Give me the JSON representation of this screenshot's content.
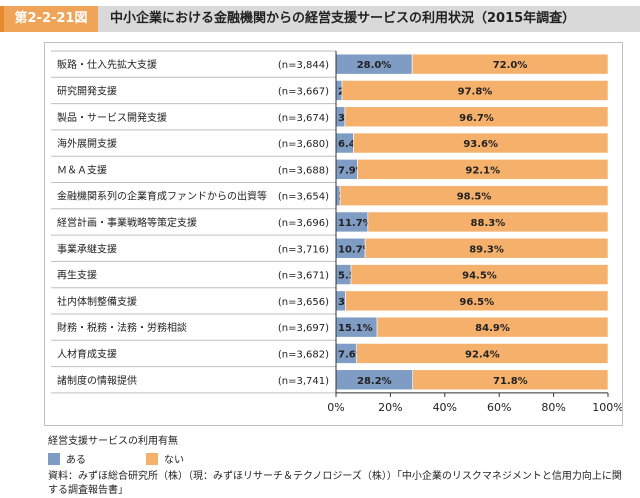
{
  "figure": {
    "label": "第2-2-21図",
    "title": "中小企業における金融機関からの経営支援サービスの利用状況（2015年調査）"
  },
  "chart_data": {
    "type": "bar",
    "orientation": "horizontal",
    "stacked": true,
    "percent_stacked": true,
    "categories": [
      "販路・仕入先拡大支援",
      "研究開発支援",
      "製品・サービス開発支援",
      "海外展開支援",
      "Ｍ＆Ａ支援",
      "金融機関系列の企業育成ファンドからの出資等",
      "経営計画・事業戦略等策定支援",
      "事業承継支援",
      "再生支援",
      "社内体制整備支援",
      "財務・税務・法務・労務相談",
      "人材育成支援",
      "諸制度の情報提供"
    ],
    "n_labels": [
      "(n=3,844)",
      "(n=3,667)",
      "(n=3,674)",
      "(n=3,680)",
      "(n=3,688)",
      "(n=3,654)",
      "(n=3,696)",
      "(n=3,716)",
      "(n=3,671)",
      "(n=3,656)",
      "(n=3,697)",
      "(n=3,682)",
      "(n=3,741)"
    ],
    "series": [
      {
        "name": "ある",
        "color": "#7f9cc4",
        "values": [
          28.0,
          2.2,
          3.3,
          6.4,
          7.9,
          1.5,
          11.7,
          10.7,
          5.5,
          3.5,
          15.1,
          7.6,
          28.2
        ]
      },
      {
        "name": "ない",
        "color": "#f5b06c",
        "values": [
          72.0,
          97.8,
          96.7,
          93.6,
          92.1,
          98.5,
          88.3,
          89.3,
          94.5,
          96.5,
          84.9,
          92.4,
          71.8
        ]
      }
    ],
    "xlim": [
      0,
      100
    ],
    "x_ticks": [
      "0%",
      "20%",
      "40%",
      "60%",
      "80%",
      "100%"
    ],
    "legend_title": "経営支援サービスの利用有無",
    "legend_position": "bottom-left"
  },
  "source_note": "資料：みずほ総合研究所（株）（現：みずほリサーチ＆テクノロジーズ（株））「中小企業のリスクマネジメントと信用力向上に関する調査報告書」"
}
